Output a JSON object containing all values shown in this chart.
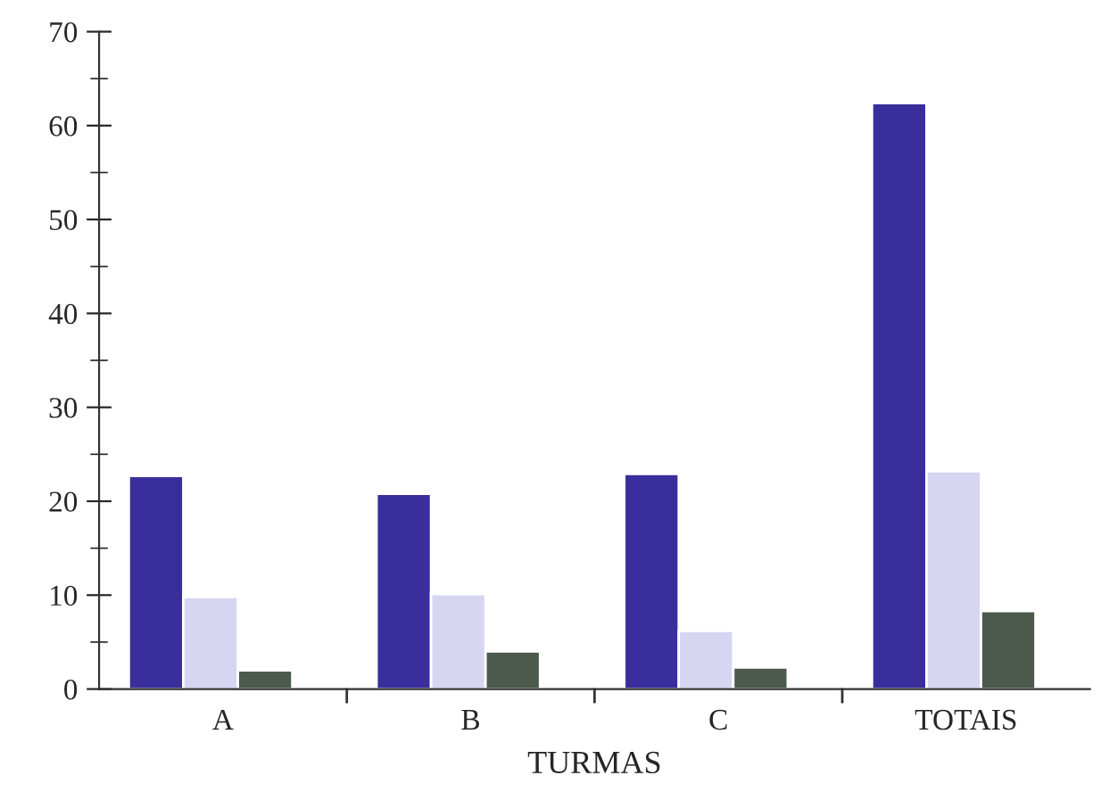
{
  "chart_data": {
    "type": "bar",
    "xlabel": "TURMAS",
    "categories": [
      "A",
      "B",
      "C",
      "TOTAIS"
    ],
    "series": [
      {
        "color": "#3a2e9c",
        "values": [
          22.7,
          20.8,
          22.9,
          62.4
        ]
      },
      {
        "color": "#d6d5f2",
        "values": [
          9.8,
          10.1,
          6.2,
          23.2
        ]
      },
      {
        "color": "#4b5a4c",
        "values": [
          2.0,
          4.0,
          2.3,
          8.3
        ]
      }
    ],
    "ylim": [
      0,
      70
    ],
    "yticks": [
      0,
      10,
      20,
      30,
      40,
      50,
      60,
      70
    ],
    "grid": false,
    "legend": false
  }
}
